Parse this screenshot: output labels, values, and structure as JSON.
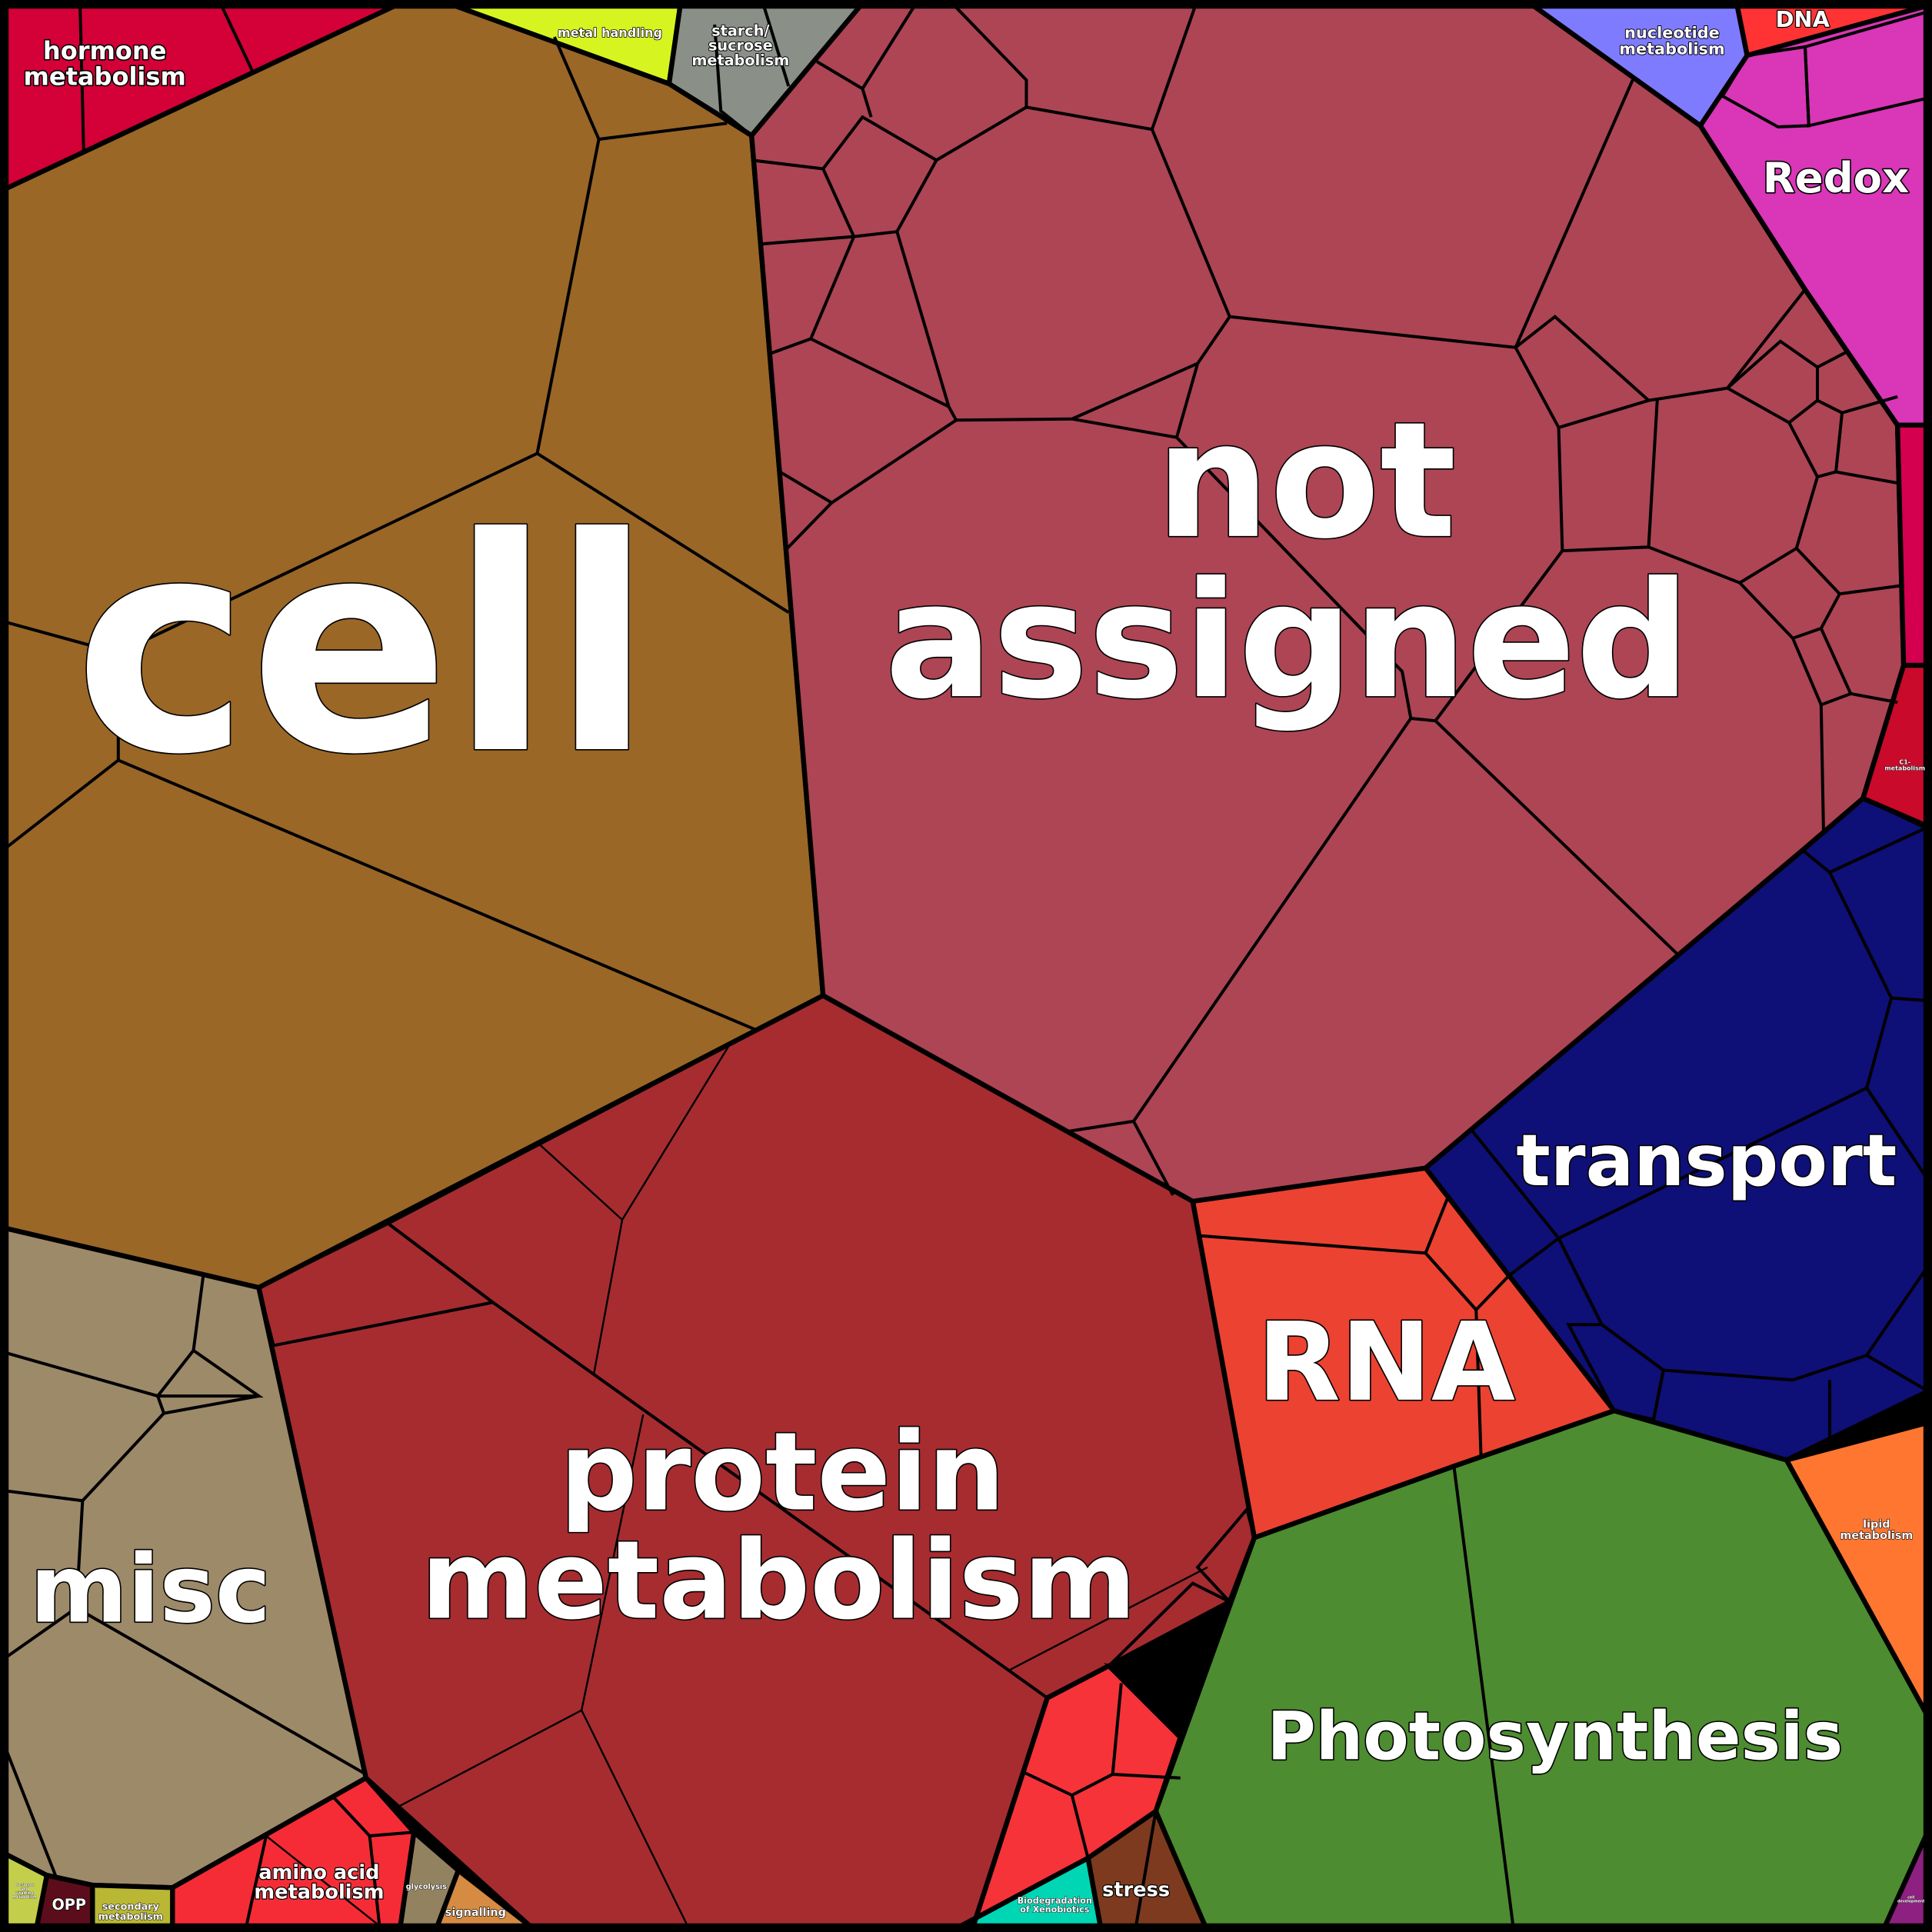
{
  "regions": {
    "hormone": {
      "label_1": "hormone",
      "label_2": "metabolism",
      "color": "#D40038"
    },
    "metal": {
      "label": "metal handling",
      "color": "#D6F520"
    },
    "starch": {
      "label_1": "starch/",
      "label_2": "sucrose",
      "label_3": "metabolism",
      "color": "#8A8F87"
    },
    "cell": {
      "label": "cell",
      "color": "#9A6727"
    },
    "not_assigned": {
      "label_1": "not",
      "label_2": "assigned",
      "color": "#AD4554"
    },
    "nucleotide": {
      "label_1": "nucleotide",
      "label_2": "metabolism",
      "color": "#7F7BFF"
    },
    "dna": {
      "label": "DNA",
      "color": "#FF3333"
    },
    "redox": {
      "label": "Redox",
      "color": "#D936B8",
      "color_2": "#D566B8",
      "color_3": "#973A80"
    },
    "pink_strip": {
      "color": "#D4004F"
    },
    "c1": {
      "label_1": "C1-",
      "label_2": "metabolism",
      "color": "#C90A2B"
    },
    "transport": {
      "label": "transport",
      "color": "#0F0F78",
      "color_2": "#5B5BC8",
      "color_3": "#0000C0"
    },
    "rna": {
      "label": "RNA",
      "color": "#EC4231",
      "color_2": "#F0200A"
    },
    "photosynthesis": {
      "label": "Photosynthesis",
      "color": "#4D8C30",
      "color_2": "#4E9245"
    },
    "lipid": {
      "label_1": "lipid",
      "label_2": "metabolism",
      "color": "#FF7630"
    },
    "cell_development": {
      "label_1": "cell",
      "label_2": "development",
      "color": "#8D2080"
    },
    "stress": {
      "label": "stress",
      "color": "#7D3A1E"
    },
    "biodegradation": {
      "label_1": "Biodegradation",
      "label_2": "of Xenobiotics",
      "color": "#00D6B4"
    },
    "protein": {
      "label_1": "protein",
      "label_2": "metabolism",
      "color": "#EA6B4A",
      "color_2": "#A62C30",
      "color_3": "#BB2020",
      "color_4": "#EF8080"
    },
    "small_red": {
      "color": "#F53339",
      "color_orange": "#FF6A2A",
      "color_blue": "#2E2ED6"
    },
    "misc": {
      "label": "misc",
      "color": "#9D8A69"
    },
    "amino_acid": {
      "label_1": "amino acid",
      "label_2": "metabolism",
      "color": "#F52C36"
    },
    "glycolysis": {
      "label": "glycolysis",
      "color": "#928260"
    },
    "signalling": {
      "label": "signalling",
      "color": "#D68B42"
    },
    "secondary": {
      "label_1": "secondary",
      "label_2": "metabolism",
      "color": "#B9B733"
    },
    "opp": {
      "label": "OPP",
      "color": "#5C0D1B"
    },
    "cofactor": {
      "label_1": "Co-factor",
      "label_2": "and",
      "label_3": "vitamine",
      "label_4": "metabolism",
      "color": "#C3CF4B"
    }
  }
}
